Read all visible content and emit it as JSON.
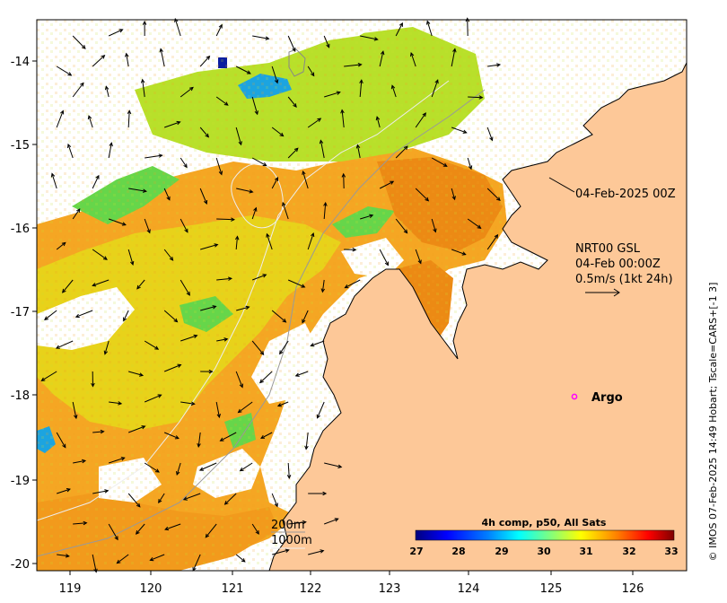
{
  "map": {
    "x_ticks": [
      "119",
      "120",
      "121",
      "122",
      "123",
      "124",
      "125",
      "126"
    ],
    "y_ticks": [
      "-14",
      "-15",
      "-16",
      "-17",
      "-18",
      "-19",
      "-20"
    ],
    "header_date": "04-Feb-2025 00Z",
    "current_legend": {
      "line1": "NRT00 GSL",
      "line2": "04-Feb 00:00Z",
      "line3": "0.5m/s (1kt 24h)"
    },
    "argo_label": "Argo",
    "contour_labels": [
      "200m",
      "1000m"
    ],
    "credit": "© IMOS 07-Feb-2025 14:49 Hobart; Tscale=CARS+[-1 3]",
    "colorbar": {
      "title": "4h comp, p50, All Sats",
      "ticks": [
        "27",
        "28",
        "29",
        "30",
        "31",
        "32",
        "33"
      ],
      "colors": [
        "#00007f",
        "#0000ff",
        "#007fff",
        "#00ffff",
        "#7fff7f",
        "#ffff00",
        "#ff7f00",
        "#ff0000",
        "#7f0000"
      ]
    },
    "colors": {
      "land": "#fdc898",
      "argo_marker": "#ff00ff"
    }
  }
}
